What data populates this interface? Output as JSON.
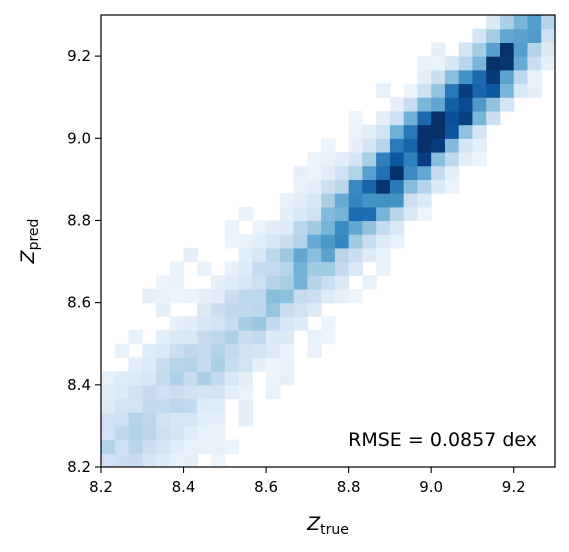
{
  "chart_data": {
    "type": "heatmap",
    "title": "",
    "xlabel": "Z",
    "xlabel_sub": "true",
    "ylabel": "Z",
    "ylabel_sub": "pred",
    "xlim": [
      8.2,
      9.3
    ],
    "ylim": [
      8.2,
      9.3
    ],
    "xticks": [
      8.2,
      8.4,
      8.6,
      8.8,
      9.0,
      9.2
    ],
    "yticks": [
      8.2,
      8.4,
      8.6,
      8.8,
      9.0,
      9.2
    ],
    "xtick_labels": [
      "8.2",
      "8.4",
      "8.6",
      "8.8",
      "9.0",
      "9.2"
    ],
    "ytick_labels": [
      "8.2",
      "8.4",
      "8.6",
      "8.8",
      "9.0",
      "9.2"
    ],
    "colormap": "Blues",
    "bins": 33,
    "density_model": "counts concentrated along Z_pred = Z_true with scatter widening toward low metallicity; peak density near (9.07, 9.05)",
    "annotation": "RMSE = 0.0857 dex",
    "annotation_position": "bottom-right",
    "grid": false,
    "legend": "none"
  }
}
